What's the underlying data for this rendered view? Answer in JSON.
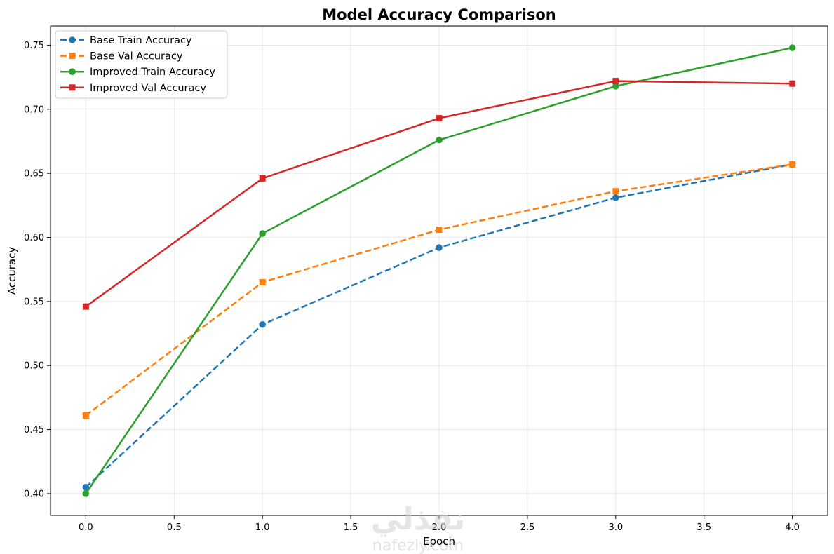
{
  "chart_data": {
    "type": "line",
    "title": "Model Accuracy Comparison",
    "xlabel": "Epoch",
    "ylabel": "Accuracy",
    "xlim": [
      -0.2,
      4.2
    ],
    "ylim": [
      0.383,
      0.765
    ],
    "xticks": [
      0.0,
      0.5,
      1.0,
      1.5,
      2.0,
      2.5,
      3.0,
      3.5,
      4.0
    ],
    "xtick_labels": [
      "0.0",
      "0.5",
      "1.0",
      "1.5",
      "2.0",
      "2.5",
      "3.0",
      "3.5",
      "4.0"
    ],
    "yticks": [
      0.4,
      0.45,
      0.5,
      0.55,
      0.6,
      0.65,
      0.7,
      0.75
    ],
    "ytick_labels": [
      "0.40",
      "0.45",
      "0.50",
      "0.55",
      "0.60",
      "0.65",
      "0.70",
      "0.75"
    ],
    "grid": true,
    "legend_position": "top-left",
    "x": [
      0,
      1,
      2,
      3,
      4
    ],
    "series": [
      {
        "name": "Base Train Accuracy",
        "values": [
          0.405,
          0.532,
          0.592,
          0.631,
          0.657
        ],
        "color": "#1f77b4",
        "line_style": "dashed",
        "marker": "circle"
      },
      {
        "name": "Base Val Accuracy",
        "values": [
          0.461,
          0.565,
          0.606,
          0.636,
          0.657
        ],
        "color": "#ff7f0e",
        "line_style": "dashed",
        "marker": "square"
      },
      {
        "name": "Improved Train Accuracy",
        "values": [
          0.4,
          0.603,
          0.676,
          0.718,
          0.748
        ],
        "color": "#2ca02c",
        "line_style": "solid",
        "marker": "circle"
      },
      {
        "name": "Improved Val Accuracy",
        "values": [
          0.546,
          0.646,
          0.693,
          0.722,
          0.72
        ],
        "color": "#d62728",
        "line_style": "solid",
        "marker": "square"
      }
    ]
  },
  "watermark": {
    "arabic": "نفذلي",
    "latin": "nafezly.com"
  }
}
